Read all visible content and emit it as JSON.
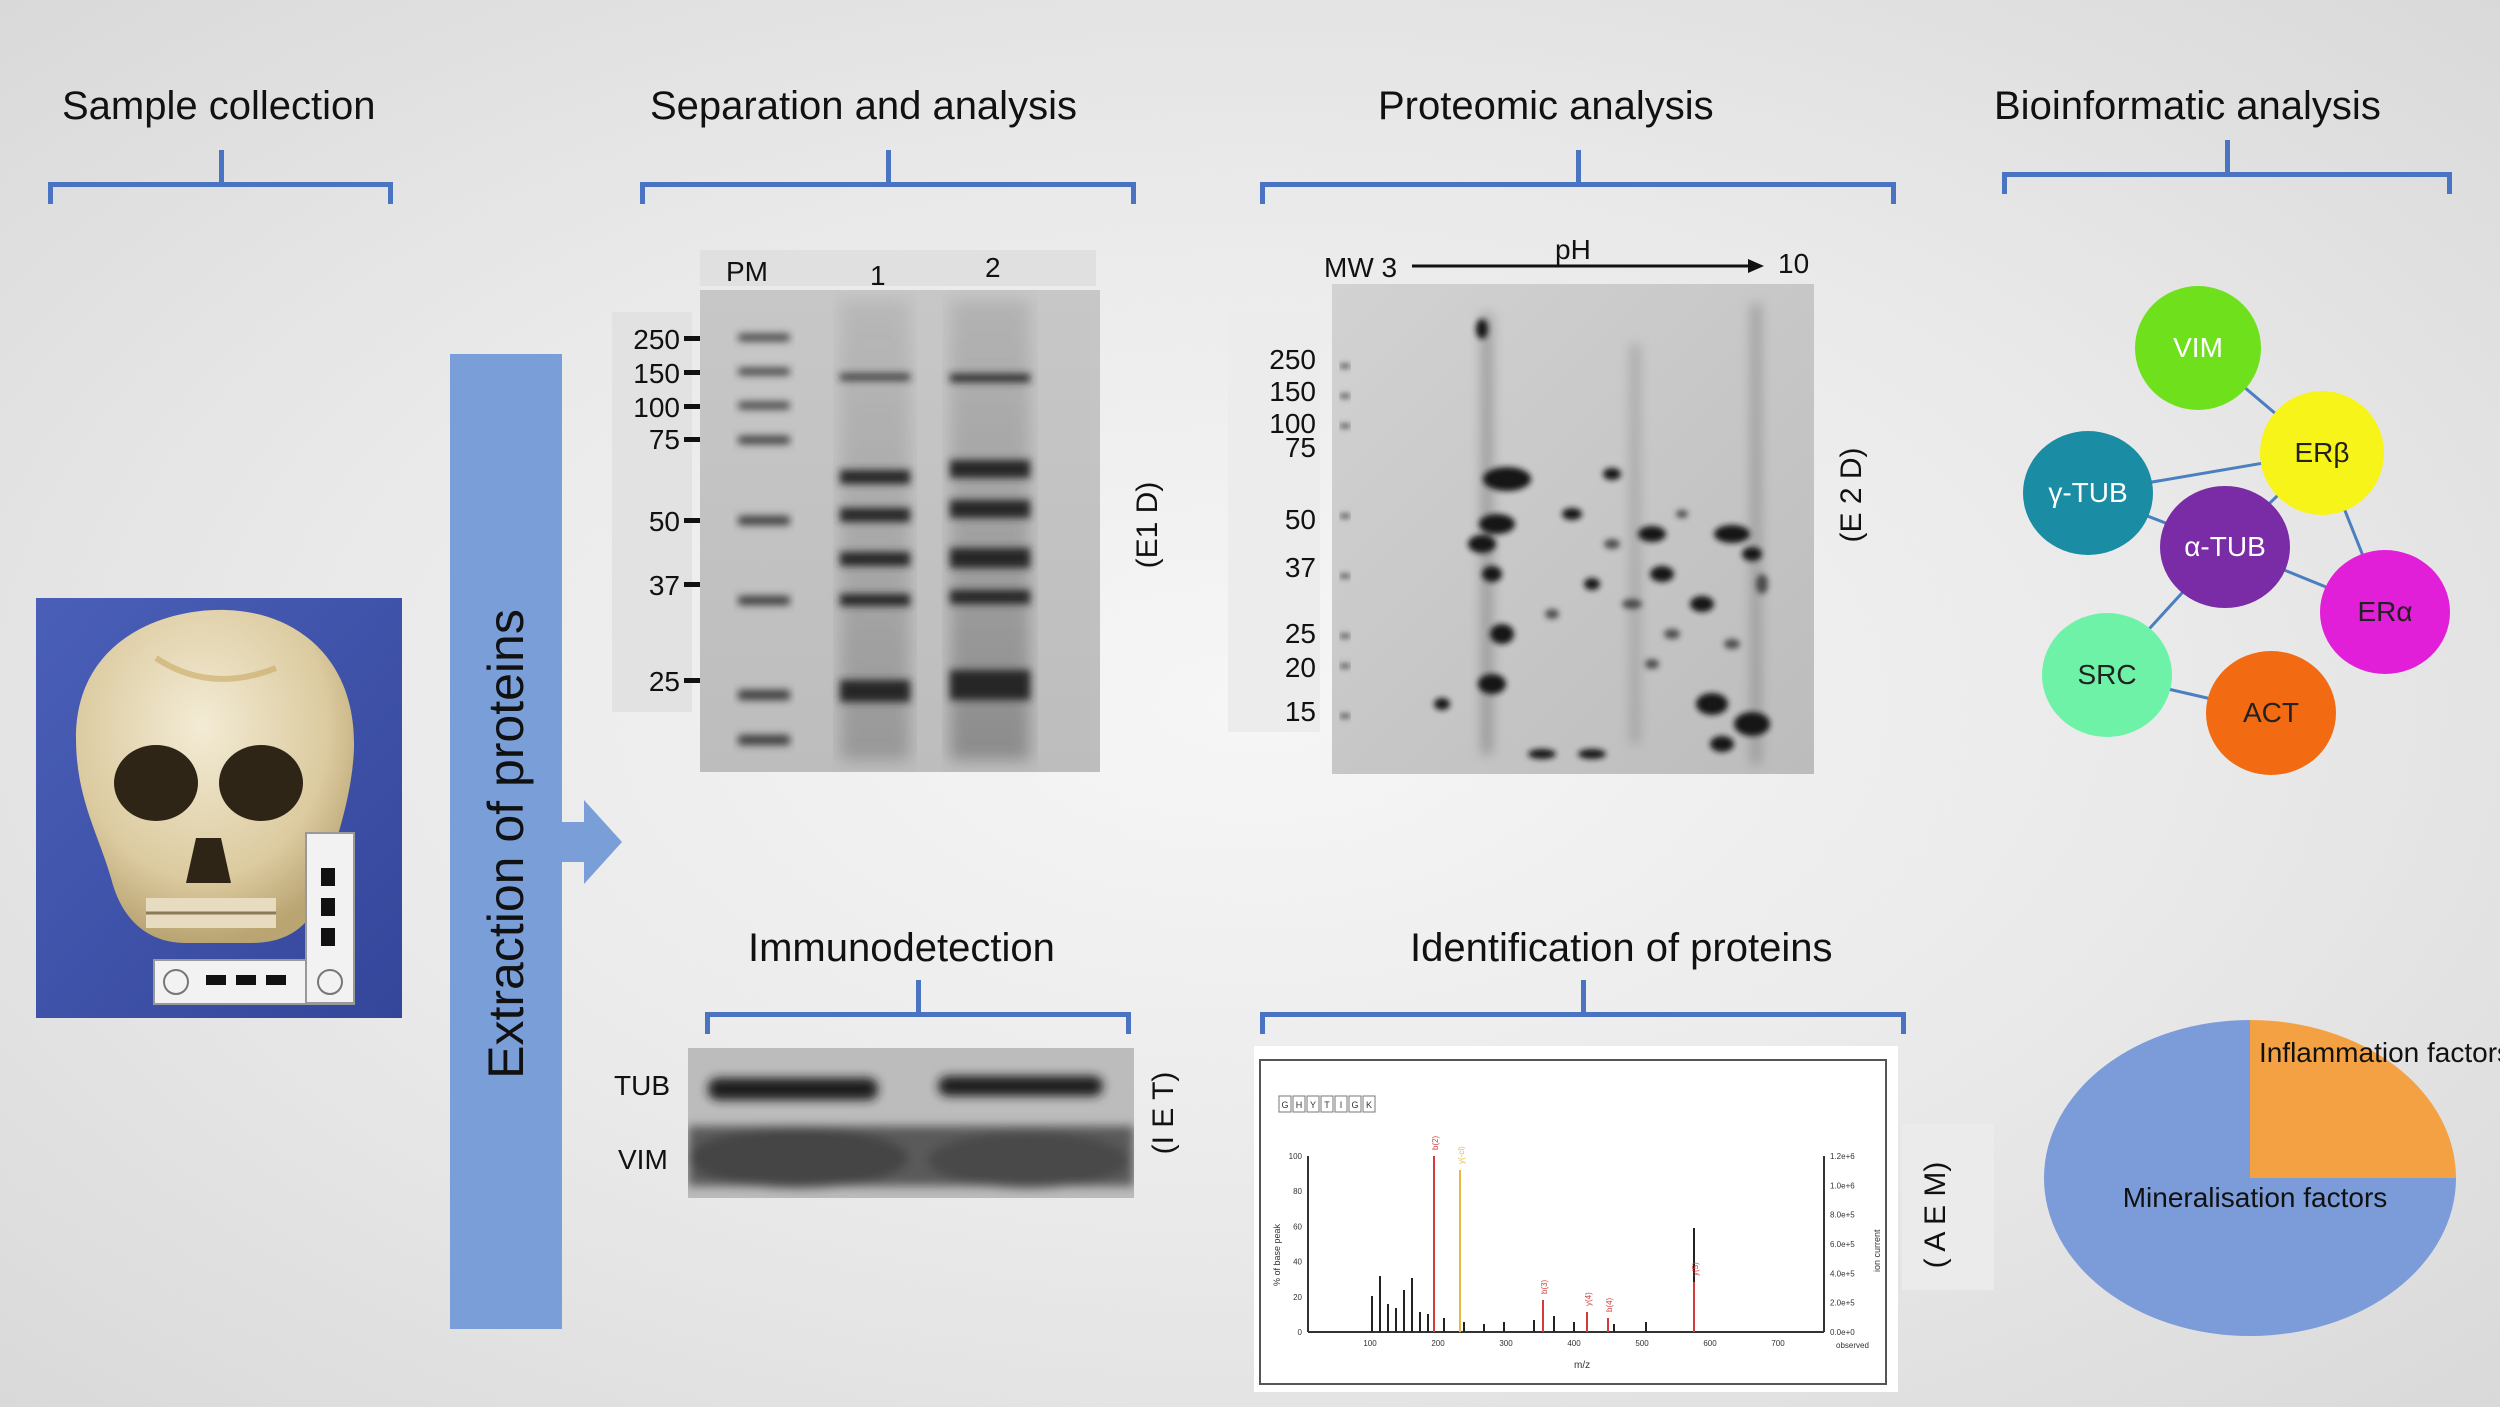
{
  "sections": {
    "sample": "Sample collection",
    "separation": "Separation and analysis",
    "proteomic": "Proteomic analysis",
    "bioinformatic": "Bioinformatic analysis",
    "immuno": "Immunodetection",
    "identification": "Identification of proteins"
  },
  "extraction_label": "Extraction of proteins",
  "gel1d": {
    "lanes": [
      "PM",
      "1",
      "2"
    ],
    "markers": [
      "250",
      "150",
      "100",
      "75",
      "50",
      "37",
      "25"
    ],
    "side_label": "(E1 D)"
  },
  "gel2d": {
    "mw_label": "MW 3",
    "ph_label": "pH",
    "ph_end": "10",
    "markers": [
      "250",
      "150",
      "100",
      "75",
      "50",
      "37",
      "25",
      "20",
      "15"
    ],
    "side_label": "(E 2 D)"
  },
  "western": {
    "rows": [
      "TUB",
      "VIM"
    ],
    "side_label": "(I E T)"
  },
  "ms": {
    "side_label": "( A E M)",
    "sequence": [
      "G",
      "H",
      "Y",
      "T",
      "I",
      "G",
      "K"
    ],
    "y_ticks_left": [
      "100",
      "80",
      "60",
      "40",
      "20",
      "0"
    ],
    "y_ticks_right": [
      "1.2e+6",
      "1.0e+6",
      "8.0e+5",
      "6.0e+5",
      "4.0e+5",
      "2.0e+5",
      "0.0e+0"
    ],
    "x_ticks": [
      "100",
      "200",
      "300",
      "400",
      "500",
      "600",
      "700"
    ],
    "xlabel": "m/z",
    "ylabel_left": "% of base peak",
    "ylabel_right": "ion current",
    "corner": "observed",
    "peak_labels": [
      "b(2)",
      "y(-cl)",
      "b(3)",
      "y(4)",
      "b(4)",
      "y(5)"
    ]
  },
  "network": {
    "nodes": [
      {
        "id": "vim",
        "label": "VIM",
        "color": "#6fe01c",
        "text": "#ffffff"
      },
      {
        "id": "erb",
        "label": "ERβ",
        "color": "#f7f41a",
        "text": "#222222"
      },
      {
        "id": "gtub",
        "label": "γ-TUB",
        "color": "#1a8ca3",
        "text": "#ffffff"
      },
      {
        "id": "atub",
        "label": "α-TUB",
        "color": "#7a2ba6",
        "text": "#ffffff"
      },
      {
        "id": "era",
        "label": "ERα",
        "color": "#e21fd8",
        "text": "#222222"
      },
      {
        "id": "src",
        "label": "SRC",
        "color": "#6ef2a8",
        "text": "#222222"
      },
      {
        "id": "act",
        "label": "ACT",
        "color": "#f26a12",
        "text": "#222222"
      }
    ]
  },
  "chart_data": {
    "type": "pie",
    "slices": [
      {
        "label": "Mineralisation factors",
        "value": 75,
        "color": "#7b9bd9"
      },
      {
        "label": "Inflammation factors",
        "value": 25,
        "color": "#f3a142"
      }
    ]
  }
}
